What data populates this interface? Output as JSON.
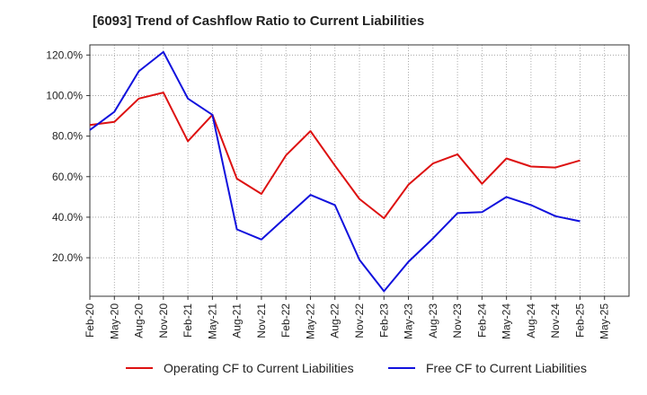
{
  "chart_data": {
    "type": "line",
    "title": "[6093]  Trend of Cashflow Ratio to Current Liabilities",
    "x": [
      "Feb-20",
      "May-20",
      "Aug-20",
      "Nov-20",
      "Feb-21",
      "May-21",
      "Aug-21",
      "Nov-21",
      "Feb-22",
      "May-22",
      "Aug-22",
      "Nov-22",
      "Feb-23",
      "May-23",
      "Aug-23",
      "Nov-23",
      "Feb-24",
      "May-24",
      "Aug-24",
      "Nov-24",
      "Feb-25",
      "May-25"
    ],
    "x_tick_labels": [
      "Feb-20",
      "May-20",
      "Aug-20",
      "Nov-20",
      "Feb-21",
      "May-21",
      "Aug-21",
      "Nov-21",
      "Feb-22",
      "May-22",
      "Aug-22",
      "Nov-22",
      "Feb-23",
      "May-23",
      "Aug-23",
      "Nov-23",
      "Feb-24",
      "May-24",
      "Aug-24",
      "Nov-24",
      "Feb-25",
      "May-25"
    ],
    "y_tick_values": [
      20,
      40,
      60,
      80,
      100,
      120
    ],
    "y_tick_labels": [
      "20.0%",
      "40.0%",
      "60.0%",
      "80.0%",
      "100.0%",
      "120.0%"
    ],
    "ylim": [
      1,
      125
    ],
    "grid": true,
    "legend_position": "bottom",
    "series": [
      {
        "name": "Operating CF to Current Liabilities",
        "color": "#dd1111",
        "values": [
          85.5,
          87,
          98.5,
          101.5,
          77.5,
          90.5,
          59,
          51.5,
          70.5,
          82.5,
          65.5,
          49,
          39.5,
          56,
          66.5,
          71,
          56.5,
          69,
          65,
          64.5,
          68,
          null
        ]
      },
      {
        "name": "Free CF to Current Liabilities",
        "color": "#1111dd",
        "values": [
          83,
          92,
          112,
          121.5,
          98.5,
          90.5,
          34,
          29,
          40,
          51,
          46,
          19,
          3.5,
          18,
          29.5,
          42,
          42.5,
          50,
          46,
          40.5,
          38,
          null
        ]
      }
    ]
  }
}
